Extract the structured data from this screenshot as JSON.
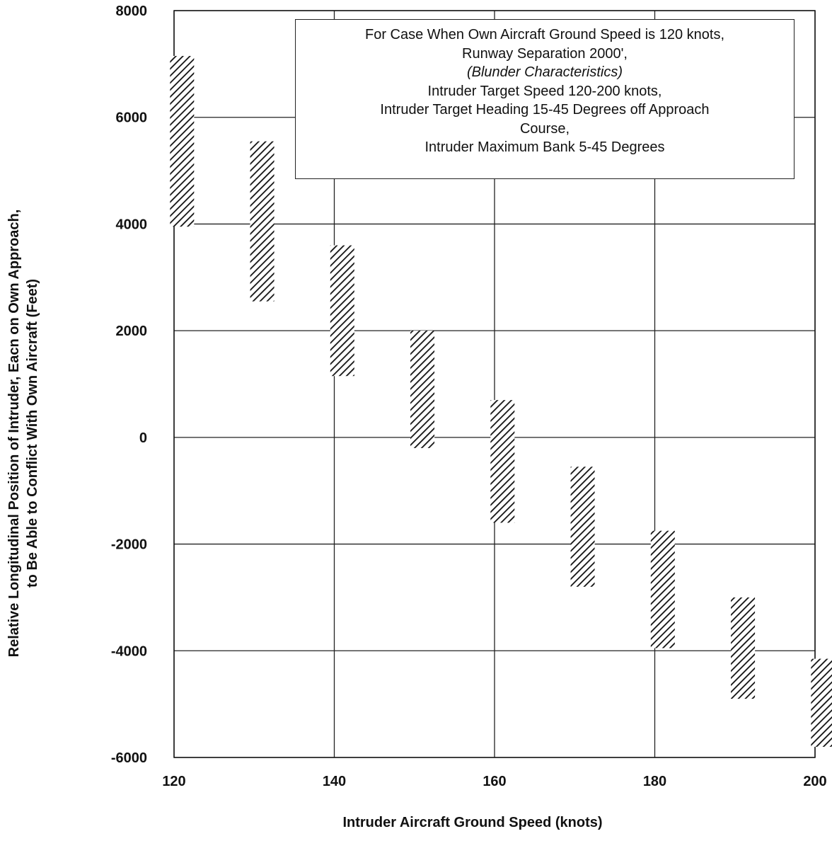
{
  "chart_data": {
    "type": "bar",
    "subtype": "floating-range",
    "x_values": [
      121,
      131,
      141,
      151,
      161,
      171,
      181,
      191,
      201
    ],
    "ranges": [
      {
        "low": 3950,
        "high": 7150
      },
      {
        "low": 2550,
        "high": 5550
      },
      {
        "low": 1150,
        "high": 3600
      },
      {
        "low": -200,
        "high": 2000
      },
      {
        "low": -1600,
        "high": 700
      },
      {
        "low": -2800,
        "high": -550
      },
      {
        "low": -3950,
        "high": -1750
      },
      {
        "low": -4900,
        "high": -3000
      },
      {
        "low": -5800,
        "high": -4150
      }
    ],
    "xlabel": "Intruder Aircraft Ground Speed (knots)",
    "ylabel_lines": [
      "Relative Longitudinal Position of Intruder, Eacn on Own Approach,",
      "to Be Able to Conflict With Own Aircraft (Feet)"
    ],
    "xlim": [
      120,
      200
    ],
    "ylim": [
      -6000,
      8000
    ],
    "x_ticks": [
      {
        "value": 120,
        "label": "120"
      },
      {
        "value": 140,
        "label": "140"
      },
      {
        "value": 160,
        "label": "160"
      },
      {
        "value": 180,
        "label": "180"
      },
      {
        "value": 200,
        "label": "200"
      }
    ],
    "y_ticks": [
      {
        "value": 8000,
        "label": "8000"
      },
      {
        "value": 6000,
        "label": "6000"
      },
      {
        "value": 4000,
        "label": "4000"
      },
      {
        "value": 2000,
        "label": "2000"
      },
      {
        "value": 0,
        "label": "0"
      },
      {
        "value": -2000,
        "label": "-2000"
      },
      {
        "value": -4000,
        "label": "-4000"
      },
      {
        "value": -6000,
        "label": "-6000"
      }
    ],
    "x_grid": [
      120,
      140,
      160,
      180,
      200
    ],
    "y_grid": [
      8000,
      6000,
      4000,
      2000,
      0,
      -2000,
      -4000,
      -6000
    ],
    "grid": true,
    "bar_fill": "diagonal-hatch",
    "colors": {
      "ink": "#111111",
      "background": "#ffffff"
    }
  },
  "annotation": {
    "lines": [
      {
        "text": "For Case When Own Aircraft Ground Speed is 120 knots,",
        "italic": false
      },
      {
        "text": "Runway Separation 2000',",
        "italic": false
      },
      {
        "text": "(Blunder Characteristics)",
        "italic": true
      },
      {
        "text": "Intruder Target Speed 120-200 knots,",
        "italic": false
      },
      {
        "text": "Intruder Target Heading 15-45 Degrees off Approach",
        "italic": false
      },
      {
        "text": "Course,",
        "italic": false
      },
      {
        "text": "Intruder Maximum Bank 5-45 Degrees",
        "italic": false
      }
    ]
  }
}
